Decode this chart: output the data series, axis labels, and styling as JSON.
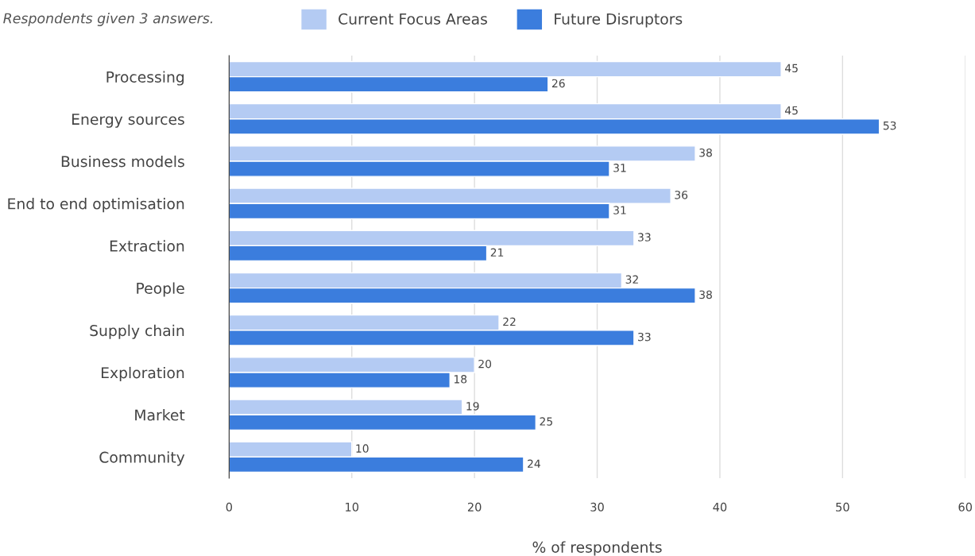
{
  "chart_data": {
    "type": "bar",
    "orientation": "horizontal",
    "subtitle": "Respondents given 3 answers.",
    "xlabel": "% of respondents",
    "categories": [
      "Processing",
      "Energy sources",
      "Business models",
      "End to end optimisation",
      "Extraction",
      "People",
      "Supply chain",
      "Exploration",
      "Market",
      "Community"
    ],
    "series": [
      {
        "name": "Current Focus Areas",
        "color": "#b4cbf3",
        "values": [
          45,
          45,
          38,
          36,
          33,
          32,
          22,
          20,
          19,
          10
        ]
      },
      {
        "name": "Future Disruptors",
        "color": "#3b7ddd",
        "values": [
          26,
          53,
          31,
          31,
          21,
          38,
          33,
          18,
          25,
          24
        ]
      }
    ],
    "xlim": [
      0,
      60
    ],
    "xticks": [
      0,
      10,
      20,
      30,
      40,
      50,
      60
    ],
    "grid": "x",
    "legend": "top",
    "data_labels": true
  }
}
